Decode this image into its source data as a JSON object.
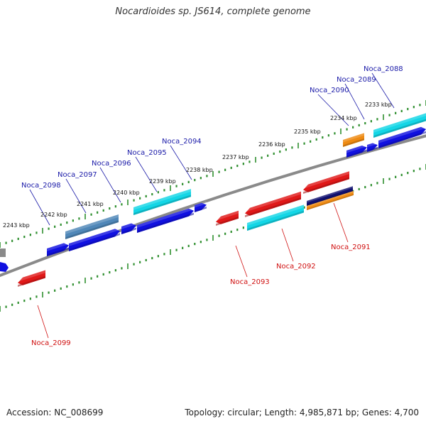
{
  "title": "Nocardioides sp. JS614, complete genome",
  "footer": {
    "accession": "Accession: NC_008699",
    "summary": "Topology: circular; Length: 4,985,871 bp; Genes: 4,700"
  },
  "colors": {
    "backbone": "#8a8a8a",
    "tick": "#2f8f2f",
    "forward_label": "#1a1aa8",
    "reverse_label": "#d01010",
    "blue": "#1010e0",
    "cyan": "#13d6e6",
    "steelblue": "#4f87b8",
    "red": "#e01818",
    "orange": "#ee8a12",
    "navy": "#101070",
    "gray": "#8a8a8a"
  },
  "scale_labels": [
    "2233 kbp",
    "2234 kbp",
    "2235 kbp",
    "2236 kbp",
    "2237 kbp",
    "2238 kbp",
    "2239 kbp",
    "2240 kbp",
    "2241 kbp",
    "2242 kbp",
    "2243 kbp"
  ],
  "forward_genes": [
    "Noca_2088",
    "Noca_2089",
    "Noca_2090",
    "Noca_2094",
    "Noca_2095",
    "Noca_2096",
    "Noca_2097",
    "Noca_2098"
  ],
  "reverse_genes": [
    "Noca_2091",
    "Noca_2092",
    "Noca_2093",
    "Noca_2099"
  ]
}
